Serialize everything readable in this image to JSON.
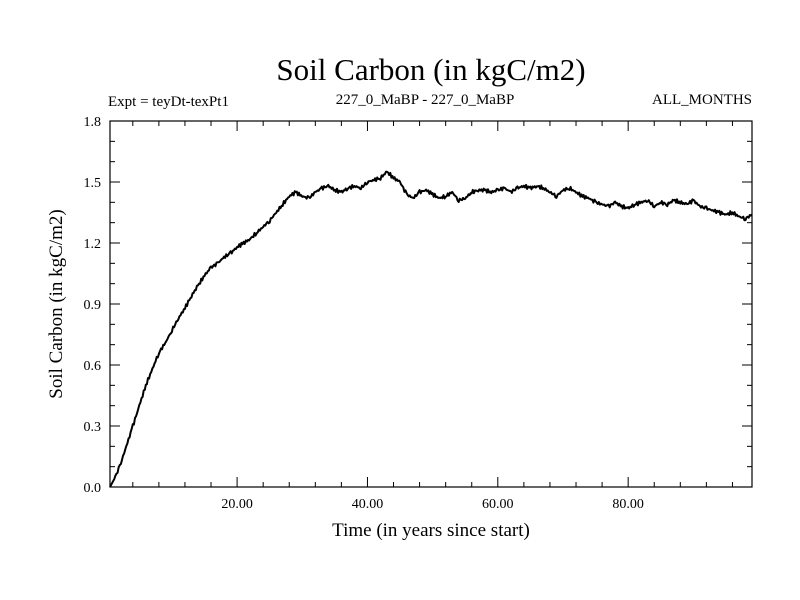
{
  "chart_data": {
    "type": "line",
    "title": "Soil Carbon (in kgC/m2)",
    "subtitle_left": "Expt = teyDt-texPt1",
    "subtitle_center": "227_0_MaBP - 227_0_MaBP",
    "subtitle_right": "ALL_MONTHS",
    "xlabel": "Time (in years since start)",
    "ylabel": "Soil Carbon (in kgC/m2)",
    "xlim": [
      0.5,
      99
    ],
    "ylim": [
      0.0,
      1.8
    ],
    "x_major_ticks": [
      20,
      40,
      60,
      80
    ],
    "x_tick_labels": [
      "20.00",
      "40.00",
      "60.00",
      "80.00"
    ],
    "x_minor_tick_step": 4,
    "y_major_ticks": [
      0.0,
      0.3,
      0.6,
      0.9,
      1.2,
      1.5,
      1.8
    ],
    "y_tick_labels": [
      "0.0",
      "0.3",
      "0.6",
      "0.9",
      "1.2",
      "1.5",
      "1.8"
    ],
    "y_minor_tick_step": 0.1,
    "grid": false,
    "series": [
      {
        "name": "Soil Carbon",
        "x": [
          0.5,
          1,
          2,
          3,
          4,
          5,
          6,
          7,
          8,
          9,
          10,
          11,
          12,
          13,
          14,
          15,
          16,
          17,
          18,
          19,
          20,
          21,
          22,
          23,
          24,
          25,
          26,
          27,
          28,
          29,
          30,
          31,
          32,
          33,
          34,
          35,
          36,
          37,
          38,
          39,
          40,
          41,
          42,
          43,
          44,
          45,
          46,
          47,
          48,
          49,
          50,
          51,
          52,
          53,
          54,
          55,
          56,
          57,
          58,
          59,
          60,
          61,
          62,
          63,
          64,
          65,
          66,
          67,
          68,
          69,
          70,
          71,
          72,
          73,
          74,
          75,
          76,
          77,
          78,
          79,
          80,
          81,
          82,
          83,
          84,
          85,
          86,
          87,
          88,
          89,
          90,
          91,
          92,
          93,
          94,
          95,
          96,
          97,
          98,
          99
        ],
        "values": [
          0.0,
          0.03,
          0.1,
          0.2,
          0.3,
          0.4,
          0.5,
          0.58,
          0.66,
          0.71,
          0.77,
          0.83,
          0.88,
          0.94,
          0.99,
          1.04,
          1.08,
          1.1,
          1.13,
          1.15,
          1.18,
          1.2,
          1.22,
          1.25,
          1.28,
          1.31,
          1.35,
          1.39,
          1.43,
          1.45,
          1.43,
          1.42,
          1.45,
          1.47,
          1.48,
          1.46,
          1.45,
          1.47,
          1.48,
          1.47,
          1.5,
          1.51,
          1.52,
          1.55,
          1.52,
          1.5,
          1.44,
          1.42,
          1.45,
          1.46,
          1.44,
          1.42,
          1.43,
          1.45,
          1.41,
          1.42,
          1.45,
          1.46,
          1.46,
          1.45,
          1.46,
          1.47,
          1.45,
          1.47,
          1.48,
          1.47,
          1.48,
          1.47,
          1.45,
          1.43,
          1.46,
          1.47,
          1.45,
          1.43,
          1.42,
          1.4,
          1.39,
          1.38,
          1.4,
          1.38,
          1.37,
          1.39,
          1.4,
          1.41,
          1.38,
          1.4,
          1.39,
          1.41,
          1.4,
          1.39,
          1.41,
          1.38,
          1.37,
          1.36,
          1.35,
          1.34,
          1.35,
          1.33,
          1.32,
          1.34
        ]
      }
    ]
  }
}
